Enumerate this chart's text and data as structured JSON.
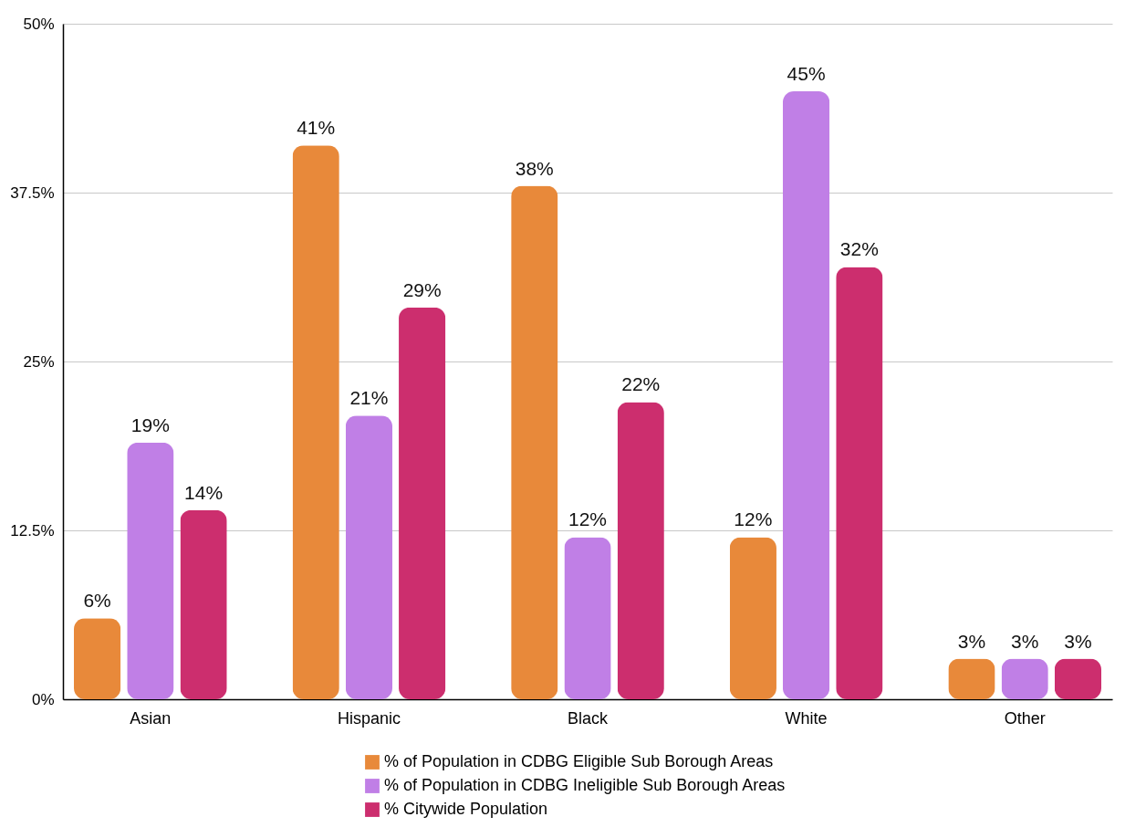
{
  "chart_data": {
    "type": "bar",
    "categories": [
      "Asian",
      "Hispanic",
      "Black",
      "White",
      "Other"
    ],
    "series": [
      {
        "name": "% of Population in CDBG Eligible Sub Borough Areas",
        "color": "#e8893a",
        "values": [
          6,
          41,
          38,
          12,
          3
        ],
        "value_labels": [
          "6%",
          "41%",
          "38%",
          "12%",
          "3%"
        ]
      },
      {
        "name": "% of Population in CDBG Ineligible Sub Borough Areas",
        "color": "#c07fe6",
        "values": [
          19,
          21,
          12,
          45,
          3
        ],
        "value_labels": [
          "19%",
          "21%",
          "12%",
          "45%",
          "3%"
        ]
      },
      {
        "name": "% Citywide Population",
        "color": "#cc2e6e",
        "values": [
          14,
          29,
          22,
          32,
          3
        ],
        "value_labels": [
          "14%",
          "29%",
          "22%",
          "32%",
          "3%"
        ]
      }
    ],
    "ylim": [
      0,
      50
    ],
    "yticks": [
      {
        "value": 0,
        "label": "0%"
      },
      {
        "value": 12.5,
        "label": "12.5%"
      },
      {
        "value": 25,
        "label": "25%"
      },
      {
        "value": 37.5,
        "label": "37.5%"
      },
      {
        "value": 50,
        "label": "50%"
      }
    ],
    "grid": "y",
    "legend": "bottom"
  }
}
